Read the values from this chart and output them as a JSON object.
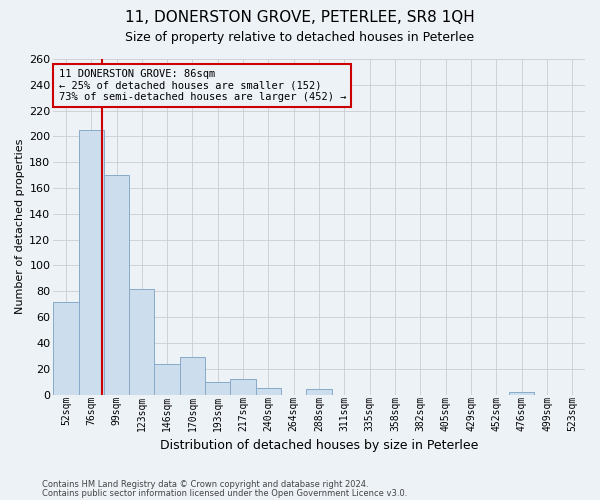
{
  "title": "11, DONERSTON GROVE, PETERLEE, SR8 1QH",
  "subtitle": "Size of property relative to detached houses in Peterlee",
  "xlabel": "Distribution of detached houses by size in Peterlee",
  "ylabel": "Number of detached properties",
  "footnote1": "Contains HM Land Registry data © Crown copyright and database right 2024.",
  "footnote2": "Contains public sector information licensed under the Open Government Licence v3.0.",
  "bin_labels": [
    "52sqm",
    "76sqm",
    "99sqm",
    "123sqm",
    "146sqm",
    "170sqm",
    "193sqm",
    "217sqm",
    "240sqm",
    "264sqm",
    "288sqm",
    "311sqm",
    "335sqm",
    "358sqm",
    "382sqm",
    "405sqm",
    "429sqm",
    "452sqm",
    "476sqm",
    "499sqm",
    "523sqm"
  ],
  "bar_values": [
    72,
    205,
    170,
    82,
    24,
    29,
    10,
    12,
    5,
    0,
    4,
    0,
    0,
    0,
    0,
    0,
    0,
    0,
    2,
    0,
    0
  ],
  "bar_color": "#ccdded",
  "bar_edge_color": "#88aac8",
  "vline_color": "#cc0000",
  "vline_x": 1.435,
  "annotation_box_text": "11 DONERSTON GROVE: 86sqm\n← 25% of detached houses are smaller (152)\n73% of semi-detached houses are larger (452) →",
  "annotation_box_edgecolor": "#cc0000",
  "ylim": [
    0,
    260
  ],
  "yticks": [
    0,
    20,
    40,
    60,
    80,
    100,
    120,
    140,
    160,
    180,
    200,
    220,
    240,
    260
  ],
  "grid_color": "#cccccc",
  "background_color": "#edf2f7",
  "title_fontsize": 11,
  "subtitle_fontsize": 9,
  "ylabel_fontsize": 8,
  "xlabel_fontsize": 9,
  "tick_fontsize": 7,
  "annot_fontsize": 7.5
}
